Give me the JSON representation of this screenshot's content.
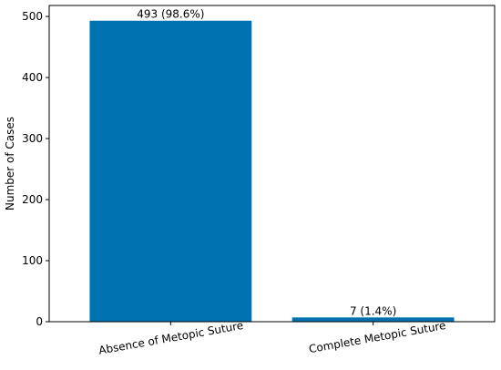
{
  "chart_data": {
    "type": "bar",
    "title": "",
    "xlabel": "",
    "ylabel": "Number of Cases",
    "categories": [
      "Absence of Metopic Suture",
      "Complete Metopic Suture"
    ],
    "values": [
      493,
      7
    ],
    "data_labels": [
      "493 (98.6%)",
      "7 (1.4%)"
    ],
    "ylim": [
      0,
      518
    ],
    "yticks": [
      0,
      100,
      200,
      300,
      400,
      500
    ],
    "bar_color": "#0072b2",
    "grid": false,
    "legend": "none"
  }
}
